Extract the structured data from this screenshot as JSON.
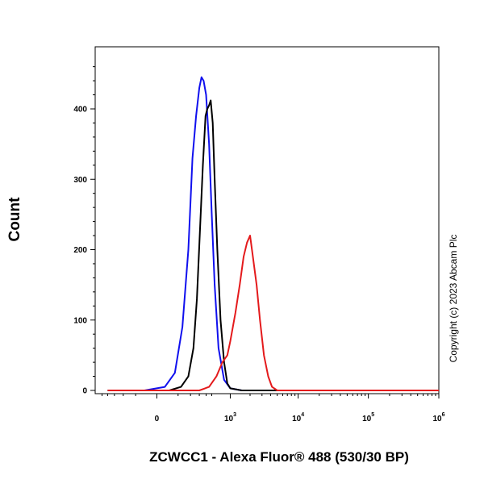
{
  "chart_data": {
    "type": "area",
    "title": "",
    "xlabel": "ZCWCC1 - Alexa Fluor® 488 (530/30 BP)",
    "ylabel": "Count",
    "x_scale": "biexponential",
    "ylim": [
      0,
      500
    ],
    "y_ticks": [
      0,
      100,
      200,
      300,
      400
    ],
    "x_tick_labels": [
      {
        "value": 0,
        "label": "0"
      },
      {
        "value": 1000,
        "base": "10",
        "exp": "3"
      },
      {
        "value": 10000,
        "base": "10",
        "exp": "4"
      },
      {
        "value": 100000,
        "base": "10",
        "exp": "5"
      },
      {
        "value": 1000000,
        "base": "10",
        "exp": "6"
      }
    ],
    "grid": false,
    "legend": "none",
    "series": [
      {
        "color": "#1010ee",
        "x": [
          -400,
          -50,
          30,
          80,
          130,
          180,
          220,
          260,
          300,
          330,
          360,
          400,
          450,
          500,
          560,
          650,
          800,
          1000,
          1500,
          3000,
          10000,
          100000,
          1000000
        ],
        "y": [
          0,
          0,
          5,
          25,
          90,
          200,
          330,
          390,
          430,
          445,
          440,
          420,
          350,
          250,
          150,
          60,
          15,
          3,
          0,
          0,
          0,
          0,
          0
        ]
      },
      {
        "color": "#000000",
        "x": [
          -400,
          50,
          120,
          180,
          230,
          270,
          310,
          350,
          390,
          420,
          450,
          480,
          520,
          560,
          620,
          700,
          800,
          900,
          1000,
          1500,
          3000,
          10000,
          100000,
          1000000
        ],
        "y": [
          0,
          0,
          5,
          20,
          60,
          130,
          230,
          320,
          390,
          400,
          405,
          412,
          380,
          300,
          200,
          100,
          40,
          10,
          3,
          0,
          0,
          0,
          0,
          0
        ]
      },
      {
        "color": "#e41a1c",
        "x": [
          -400,
          300,
          450,
          600,
          750,
          900,
          1000,
          1200,
          1400,
          1600,
          1800,
          2000,
          2200,
          2500,
          2800,
          3200,
          3700,
          4200,
          5000,
          10000,
          100000,
          1000000
        ],
        "y": [
          0,
          0,
          5,
          20,
          40,
          50,
          70,
          110,
          150,
          190,
          210,
          220,
          190,
          150,
          100,
          50,
          20,
          5,
          0,
          0,
          0,
          0
        ]
      }
    ]
  },
  "copyright": "Copyright (c) 2023 Abcam Plc"
}
